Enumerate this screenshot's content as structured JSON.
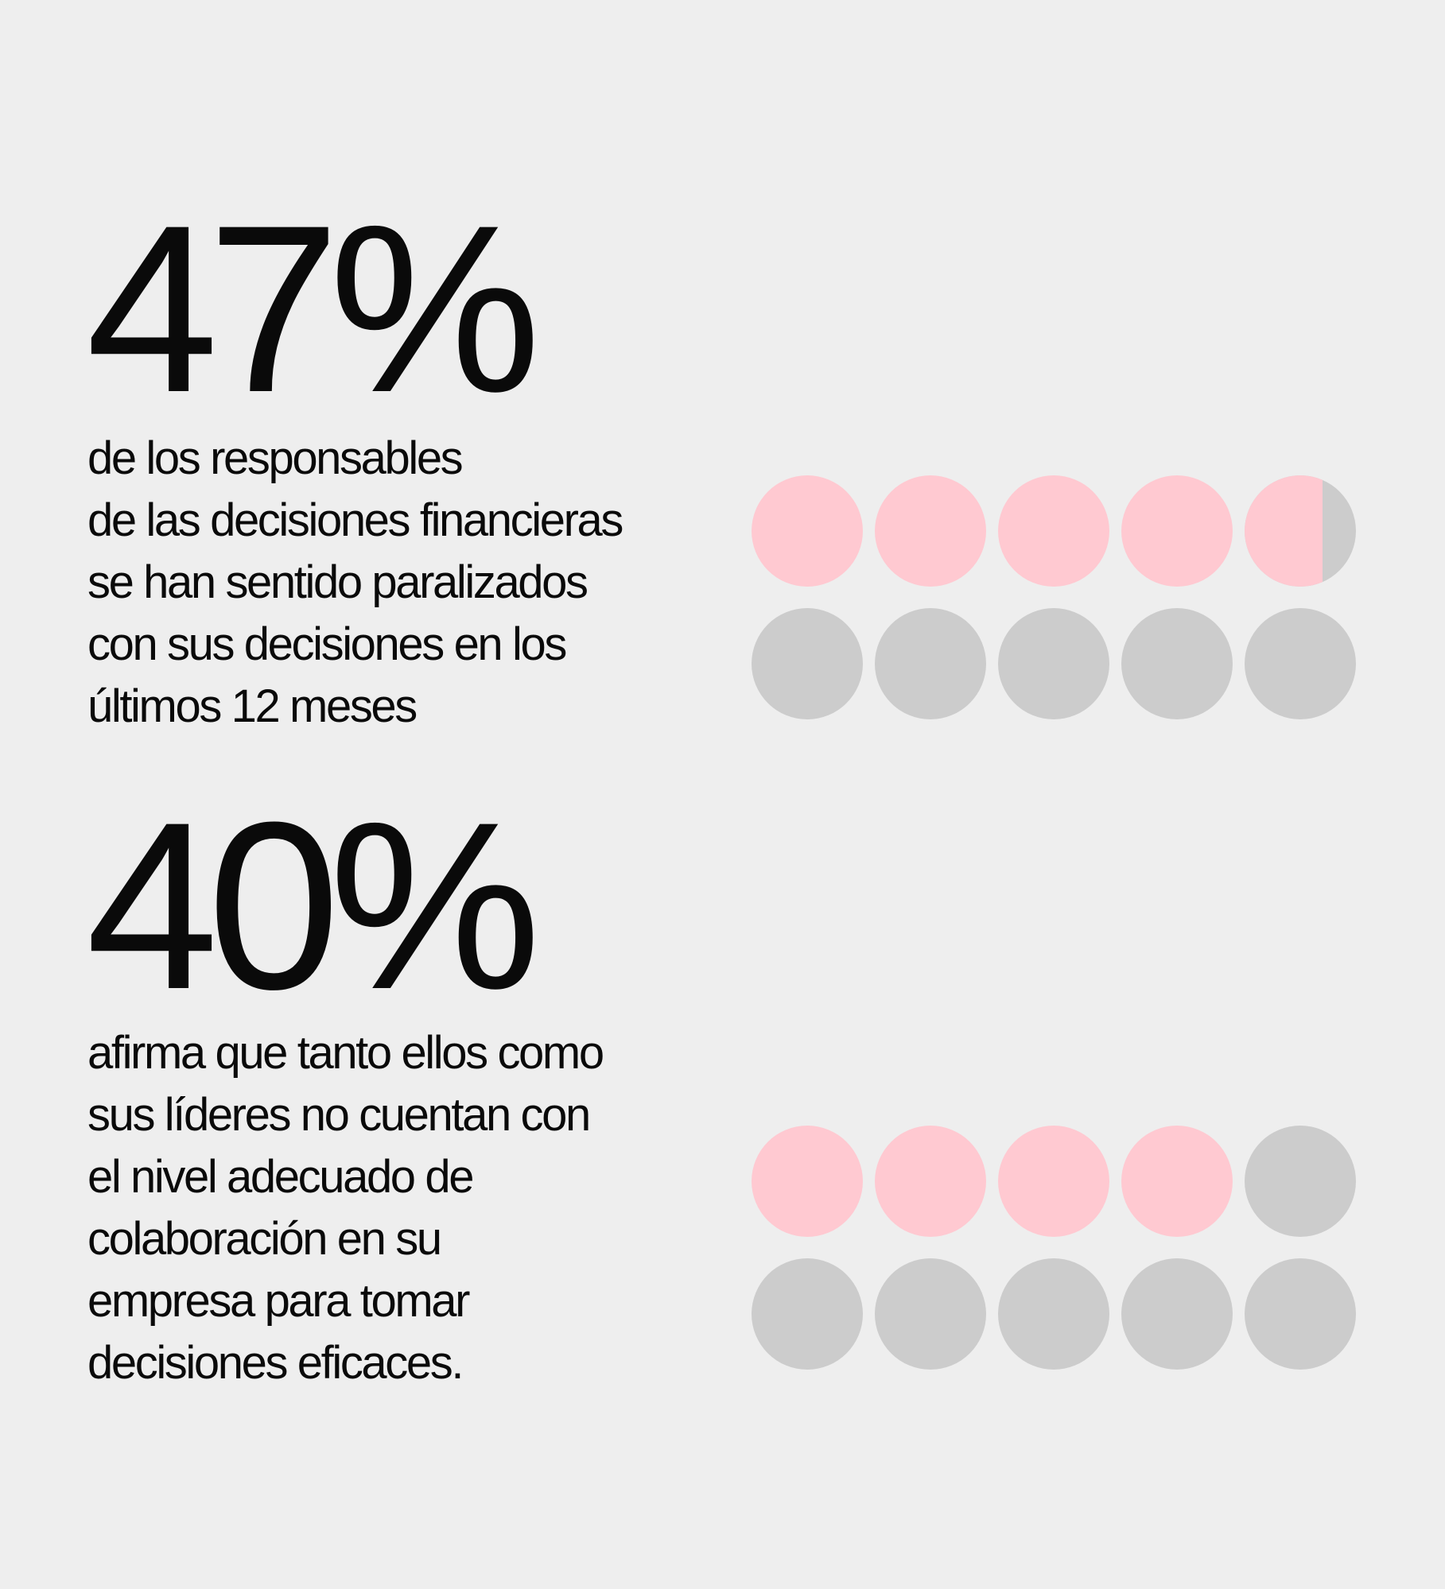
{
  "chart_data": [
    {
      "type": "waffle",
      "value_percent": 47,
      "value_label": "47%",
      "description_lines": [
        "de los responsables",
        "de las decisiones financieras",
        "se han sentido paralizados",
        "con sus decisiones en los",
        "últimos 12 meses"
      ],
      "total_dots": 10,
      "dots_per_row": 5,
      "highlight_color": "#ffc9d1",
      "base_color": "#cccccc"
    },
    {
      "type": "waffle",
      "value_percent": 40,
      "value_label": "40%",
      "description_lines": [
        "afirma que tanto ellos como",
        "sus líderes no cuentan con",
        "el nivel adecuado de",
        "colaboración en su",
        "empresa para tomar",
        "decisiones eficaces."
      ],
      "total_dots": 10,
      "dots_per_row": 5,
      "highlight_color": "#ffc9d1",
      "base_color": "#cccccc"
    }
  ]
}
